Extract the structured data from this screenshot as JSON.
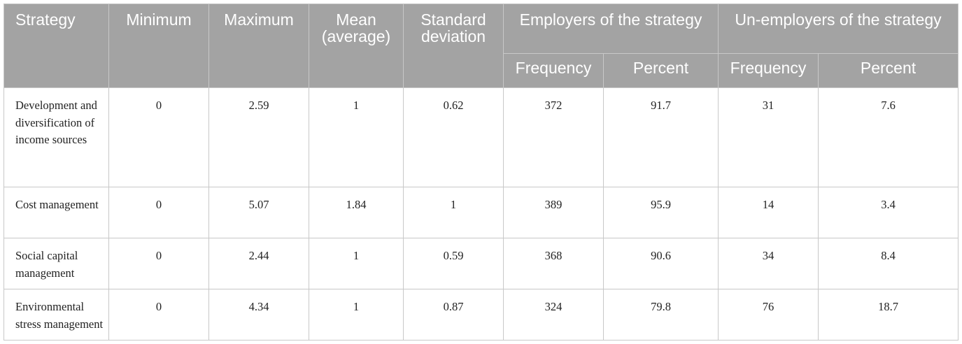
{
  "header": {
    "strategy": "Strategy",
    "minimum": "Minimum",
    "maximum": "Maximum",
    "mean": "Mean (average)",
    "std": "Standard deviation",
    "employers": "Employers of the strategy",
    "unemployers": "Un-employers of the strategy",
    "frequency": "Frequency",
    "percent": "Percent"
  },
  "rows": [
    {
      "strategy": "Development and diversification of income sources",
      "min": "0",
      "max": "2.59",
      "mean": "1",
      "std": "0.62",
      "emp_freq": "372",
      "emp_pct": "91.7",
      "unemp_freq": "31",
      "unemp_pct": "7.6"
    },
    {
      "strategy": "Cost management",
      "min": "0",
      "max": "5.07",
      "mean": "1.84",
      "std": "1",
      "emp_freq": "389",
      "emp_pct": "95.9",
      "unemp_freq": "14",
      "unemp_pct": "3.4"
    },
    {
      "strategy": "Social capital management",
      "min": "0",
      "max": "2.44",
      "mean": "1",
      "std": "0.59",
      "emp_freq": "368",
      "emp_pct": "90.6",
      "unemp_freq": "34",
      "unemp_pct": "8.4"
    },
    {
      "strategy": "Environmental stress management",
      "min": "0",
      "max": "4.34",
      "mean": "1",
      "std": "0.87",
      "emp_freq": "324",
      "emp_pct": "79.8",
      "unemp_freq": "76",
      "unemp_pct": "18.7"
    }
  ]
}
